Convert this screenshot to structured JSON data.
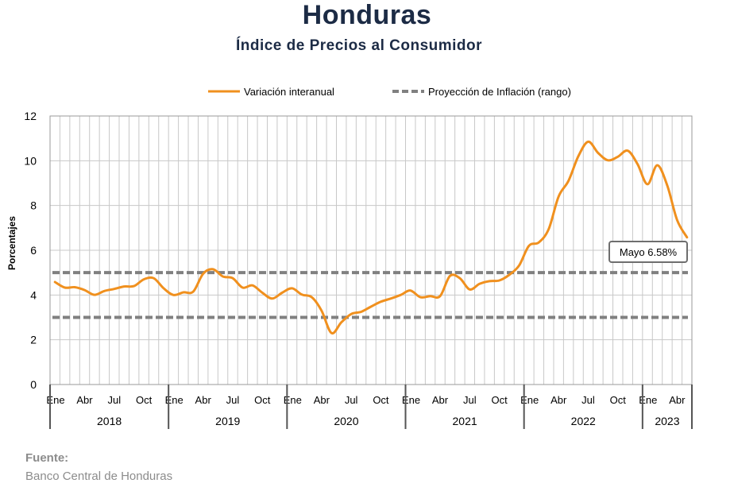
{
  "header": {
    "title": "Honduras",
    "subtitle": "Índice de Precios al Consumidor"
  },
  "source": {
    "label": "Fuente:",
    "value": "Banco Central de Honduras"
  },
  "chart_data": {
    "type": "line",
    "title": "Índice de Precios al Consumidor",
    "ylabel": "Porcentajes",
    "xlabel": "",
    "ylim": [
      0,
      12
    ],
    "yticks": [
      0,
      2,
      4,
      6,
      8,
      10,
      12
    ],
    "grid": true,
    "legend_position": "top-center",
    "months": [
      "2018-01",
      "2018-02",
      "2018-03",
      "2018-04",
      "2018-05",
      "2018-06",
      "2018-07",
      "2018-08",
      "2018-09",
      "2018-10",
      "2018-11",
      "2018-12",
      "2019-01",
      "2019-02",
      "2019-03",
      "2019-04",
      "2019-05",
      "2019-06",
      "2019-07",
      "2019-08",
      "2019-09",
      "2019-10",
      "2019-11",
      "2019-12",
      "2020-01",
      "2020-02",
      "2020-03",
      "2020-04",
      "2020-05",
      "2020-06",
      "2020-07",
      "2020-08",
      "2020-09",
      "2020-10",
      "2020-11",
      "2020-12",
      "2021-01",
      "2021-02",
      "2021-03",
      "2021-04",
      "2021-05",
      "2021-06",
      "2021-07",
      "2021-08",
      "2021-09",
      "2021-10",
      "2021-11",
      "2021-12",
      "2022-01",
      "2022-02",
      "2022-03",
      "2022-04",
      "2022-05",
      "2022-06",
      "2022-07",
      "2022-08",
      "2022-09",
      "2022-10",
      "2022-11",
      "2022-12",
      "2023-01",
      "2023-02",
      "2023-03",
      "2023-04",
      "2023-05"
    ],
    "month_tick_labels": [
      {
        "index": 0,
        "label": "Ene"
      },
      {
        "index": 3,
        "label": "Abr"
      },
      {
        "index": 6,
        "label": "Jul"
      },
      {
        "index": 9,
        "label": "Oct"
      },
      {
        "index": 12,
        "label": "Ene"
      },
      {
        "index": 15,
        "label": "Abr"
      },
      {
        "index": 18,
        "label": "Jul"
      },
      {
        "index": 21,
        "label": "Oct"
      },
      {
        "index": 24,
        "label": "Ene"
      },
      {
        "index": 27,
        "label": "Abr"
      },
      {
        "index": 30,
        "label": "Jul"
      },
      {
        "index": 33,
        "label": "Oct"
      },
      {
        "index": 36,
        "label": "Ene"
      },
      {
        "index": 39,
        "label": "Abr"
      },
      {
        "index": 42,
        "label": "Jul"
      },
      {
        "index": 45,
        "label": "Oct"
      },
      {
        "index": 48,
        "label": "Ene"
      },
      {
        "index": 51,
        "label": "Abr"
      },
      {
        "index": 54,
        "label": "Jul"
      },
      {
        "index": 57,
        "label": "Oct"
      },
      {
        "index": 60,
        "label": "Ene"
      },
      {
        "index": 63,
        "label": "Abr"
      }
    ],
    "years": [
      {
        "label": "2018",
        "start": 0,
        "end": 12
      },
      {
        "label": "2019",
        "start": 12,
        "end": 24
      },
      {
        "label": "2020",
        "start": 24,
        "end": 36
      },
      {
        "label": "2021",
        "start": 36,
        "end": 48
      },
      {
        "label": "2022",
        "start": 48,
        "end": 60
      },
      {
        "label": "2023",
        "start": 60,
        "end": 65
      }
    ],
    "series": [
      {
        "name": "Variación interanual",
        "color": "#f0901e",
        "style": "solid",
        "values": [
          4.58,
          4.33,
          4.35,
          4.22,
          4.01,
          4.18,
          4.27,
          4.38,
          4.4,
          4.7,
          4.75,
          4.3,
          4.0,
          4.12,
          4.15,
          4.95,
          5.15,
          4.83,
          4.75,
          4.33,
          4.43,
          4.1,
          3.84,
          4.1,
          4.3,
          4.02,
          3.9,
          3.3,
          2.3,
          2.78,
          3.15,
          3.25,
          3.48,
          3.7,
          3.84,
          4.0,
          4.2,
          3.9,
          3.95,
          3.95,
          4.85,
          4.75,
          4.25,
          4.5,
          4.62,
          4.65,
          4.9,
          5.32,
          6.2,
          6.35,
          6.95,
          8.4,
          9.1,
          10.2,
          10.85,
          10.35,
          10.02,
          10.18,
          10.45,
          9.85,
          8.95,
          9.8,
          8.9,
          7.35,
          6.58
        ]
      },
      {
        "name": "Proyección de Inflación (rango)",
        "color": "#808080",
        "style": "dashed",
        "bands": [
          3.0,
          5.0
        ]
      }
    ],
    "annotation": {
      "index": 64,
      "text": "Mayo 6.58%"
    }
  }
}
